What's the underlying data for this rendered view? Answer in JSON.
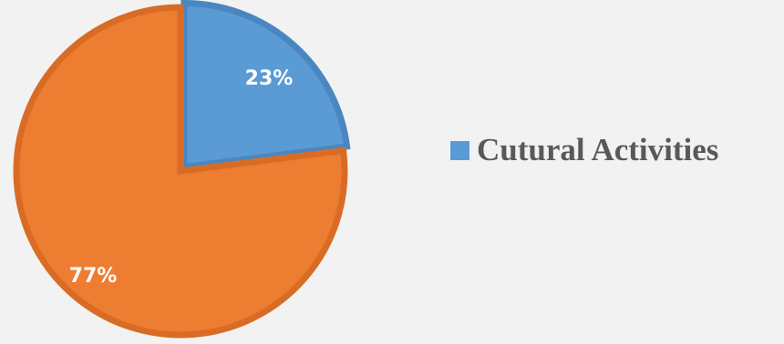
{
  "chart_data": {
    "type": "pie",
    "categories": [
      "Cutural Activities",
      ""
    ],
    "values": [
      23,
      77
    ],
    "data_labels": [
      "23%",
      "77%"
    ],
    "colors": [
      "#5b9bd5",
      "#ed7d31"
    ],
    "border_colors": [
      "#4a87c0",
      "#d96c25"
    ],
    "legend": {
      "placement": "right",
      "entries": [
        {
          "label": "Cutural Activities",
          "color": "#5b9bd5"
        }
      ]
    }
  }
}
